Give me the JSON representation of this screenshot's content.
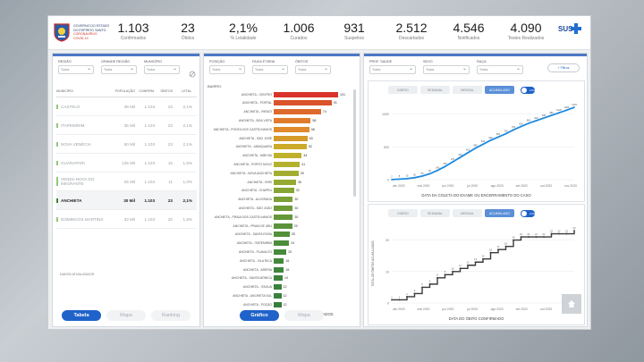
{
  "header": {
    "logo_line1": "GOVERNO DO ESTADO",
    "logo_line2": "DO ESPÍRITO SANTO",
    "logo_line3": "CORONAVÍRUS",
    "logo_line4": "COVID-19",
    "kpis": [
      {
        "value": "1.103",
        "label": "Confirmados"
      },
      {
        "value": "23",
        "label": "Óbitos"
      },
      {
        "value": "2,1%",
        "label": "% Letalidade"
      },
      {
        "value": "1.006",
        "label": "Curados"
      },
      {
        "value": "931",
        "label": "Suspeitos"
      },
      {
        "value": "2.512",
        "label": "Descartados"
      },
      {
        "value": "4.546",
        "label": "Notificados"
      },
      {
        "value": "4.090",
        "label": "Testes Realizados"
      }
    ],
    "sus_label": "SUS"
  },
  "left_panel": {
    "filters": [
      {
        "label": "REGIÃO",
        "value": "Todos"
      },
      {
        "label": "GRANDE REGIÃO",
        "value": "Todos"
      },
      {
        "label": "MUNICÍPIO",
        "value": "Todos"
      }
    ],
    "columns": [
      "MUNICÍPIO",
      "POPULAÇÃO",
      "CONFIRM.",
      "ÓBITOS",
      "LETAL."
    ],
    "rows": [
      [
        "CASTELO",
        "38 Mil",
        "1.103",
        "23",
        "2,1%"
      ],
      [
        "ITAPEMIRIM",
        "35 Mil",
        "1.103",
        "23",
        "2,1%"
      ],
      [
        "NOVA VENÉCIA",
        "50 Mil",
        "1.103",
        "23",
        "2,1%"
      ],
      [
        "GUARAPARI",
        "125 Mil",
        "1.103",
        "16",
        "1,5%"
      ],
      [
        "VENDA NOVA DO IMIGRANTE",
        "25 Mil",
        "1.103",
        "11",
        "1,0%"
      ],
      [
        "ANCHIETA",
        "30 Mil",
        "1.103",
        "23",
        "2,1%"
      ],
      [
        "DOMINGOS MARTINS",
        "33 Mil",
        "1.103",
        "20",
        "1,8%"
      ]
    ],
    "selected_row": 5,
    "footer_note": "DADOS ATUALIZADOS",
    "tabs": [
      "Tabela",
      "Mapa",
      "Ranking"
    ]
  },
  "middle_panel": {
    "filters": [
      {
        "label": "POSIÇÃO",
        "value": "Todos"
      },
      {
        "label": "FAIXA ETÁRIA",
        "value": "Todos"
      },
      {
        "label": "ÓBITOS",
        "value": "Todos"
      }
    ],
    "section_label": "BAIRRO",
    "bars": [
      {
        "label": "ANCHIETA - CENTRO",
        "value": 101,
        "color": "#d9342b"
      },
      {
        "label": "ANCHIETA - PORTAL",
        "value": 91,
        "color": "#d9532b"
      },
      {
        "label": "ANCHIETA - PARATI",
        "value": 74,
        "color": "#dd6a2c"
      },
      {
        "label": "ANCHIETA - BOA VISTA",
        "value": 58,
        "color": "#e07c2c"
      },
      {
        "label": "ANCHIETA - PONTA DOS CASTELHANOS",
        "value": 56,
        "color": "#e08a2c"
      },
      {
        "label": "ANCHIETA - SÃO JOSÉ",
        "value": 53,
        "color": "#d59a2a"
      },
      {
        "label": "ANCHIETA - JABAQUARA",
        "value": 52,
        "color": "#ccaa2a"
      },
      {
        "label": "ANCHIETA - MÃE-BÁ",
        "value": 44,
        "color": "#bfb12c"
      },
      {
        "label": "ANCHIETA - PORTO NOVO",
        "value": 41,
        "color": "#b3b12e"
      },
      {
        "label": "ANCHIETA - NOVA ANCHIETA",
        "value": 39,
        "color": "#a3ae30"
      },
      {
        "label": "ANCHIETA - IRIRI",
        "value": 35,
        "color": "#94aa32"
      },
      {
        "label": "ANCHIETA - CHAPÉU",
        "value": 32,
        "color": "#86a534"
      },
      {
        "label": "ANCHIETA - ALVORADA",
        "value": 30,
        "color": "#7aa036"
      },
      {
        "label": "ANCHIETA - SÃO JOÃO",
        "value": 30,
        "color": "#6e9b37"
      },
      {
        "label": "ANCHIETA - PRAIA DOS CASTELHANOS",
        "value": 30,
        "color": "#649738"
      },
      {
        "label": "ANCHIETA - PRAIA DE UBU",
        "value": 29,
        "color": "#5a9339"
      },
      {
        "label": "ANCHIETA - SANTA ROSA",
        "value": 25,
        "color": "#52903a"
      },
      {
        "label": "ANCHIETA - ITAPEMIRIM",
        "value": 24,
        "color": "#4c8d3b"
      },
      {
        "label": "ANCHIETA - PLANALTO",
        "value": 20,
        "color": "#468a3b"
      },
      {
        "label": "ANCHIETA - VILA RICA",
        "value": 16,
        "color": "#42883c"
      },
      {
        "label": "ANCHIETA - ARERIA",
        "value": 16,
        "color": "#3f863c"
      },
      {
        "label": "ANCHIETA - SANTA MÔNICA",
        "value": 14,
        "color": "#3c843c"
      },
      {
        "label": "ANCHIETA - ITAGUÁ",
        "value": 12,
        "color": "#3a823c"
      },
      {
        "label": "ANCHIETA - ANCHIETA SUL",
        "value": 12,
        "color": "#38803c"
      },
      {
        "label": "ANCHIETA - POÇÃO",
        "value": 12,
        "color": "#367e3c"
      }
    ],
    "x_title": "TOTAL DE CONFIRMADOS",
    "tabs": [
      "Gráfico",
      "Mapa"
    ]
  },
  "right_panel": {
    "filters": [
      {
        "label": "PROF. SAÚDE",
        "value": "Todos"
      },
      {
        "label": "SEXO",
        "value": "Todos"
      },
      {
        "label": "RAÇA",
        "value": "Todos"
      }
    ],
    "more_filters_label": "+ Filtros",
    "chart_tabs": [
      "DIÁRIO",
      "SEMANAL",
      "MENSAL",
      "ACUMULADO"
    ],
    "active_chart_tab": 3,
    "toggle_label": "LOG",
    "home_icon": "home-icon"
  },
  "chart_data": [
    {
      "type": "line",
      "title": "",
      "xlabel": "DATA DA COLETA DO EXAME OU ENCERRAMENTO DO CASO",
      "ylabel": "",
      "color": "#1f8be0",
      "x_ticks": [
        "abr 2020",
        "mai 2020",
        "jun 2020",
        "jul 2020",
        "ago 2020",
        "set 2020",
        "out 2020",
        "nov 2020"
      ],
      "y_ticks": [
        0,
        500,
        1000
      ],
      "ylim": [
        0,
        1200
      ],
      "values": [
        2,
        8,
        15,
        30,
        55,
        90,
        140,
        200,
        270,
        340,
        410,
        480,
        540,
        600,
        650,
        700,
        760,
        810,
        860,
        900,
        940,
        980,
        1020,
        1060,
        1103
      ]
    },
    {
      "type": "line",
      "title": "",
      "xlabel": "DATA DO ÓBITO CONFIRMADO",
      "ylabel": "TOTAL DE ÓBITOS ACUMULADOS",
      "color": "#3a3a3a",
      "x_ticks": [
        "abr 2020",
        "mai 2020",
        "jun 2020",
        "jul 2020",
        "ago 2020",
        "set 2020",
        "out 2020",
        "nov 2020"
      ],
      "y_ticks": [
        0,
        10,
        20
      ],
      "ylim": [
        0,
        25
      ],
      "values": [
        1,
        1,
        2,
        3,
        5,
        6,
        8,
        9,
        10,
        11,
        12,
        13,
        14,
        16,
        17,
        18,
        20,
        21,
        21,
        21,
        21,
        22,
        22,
        22,
        23
      ]
    }
  ]
}
